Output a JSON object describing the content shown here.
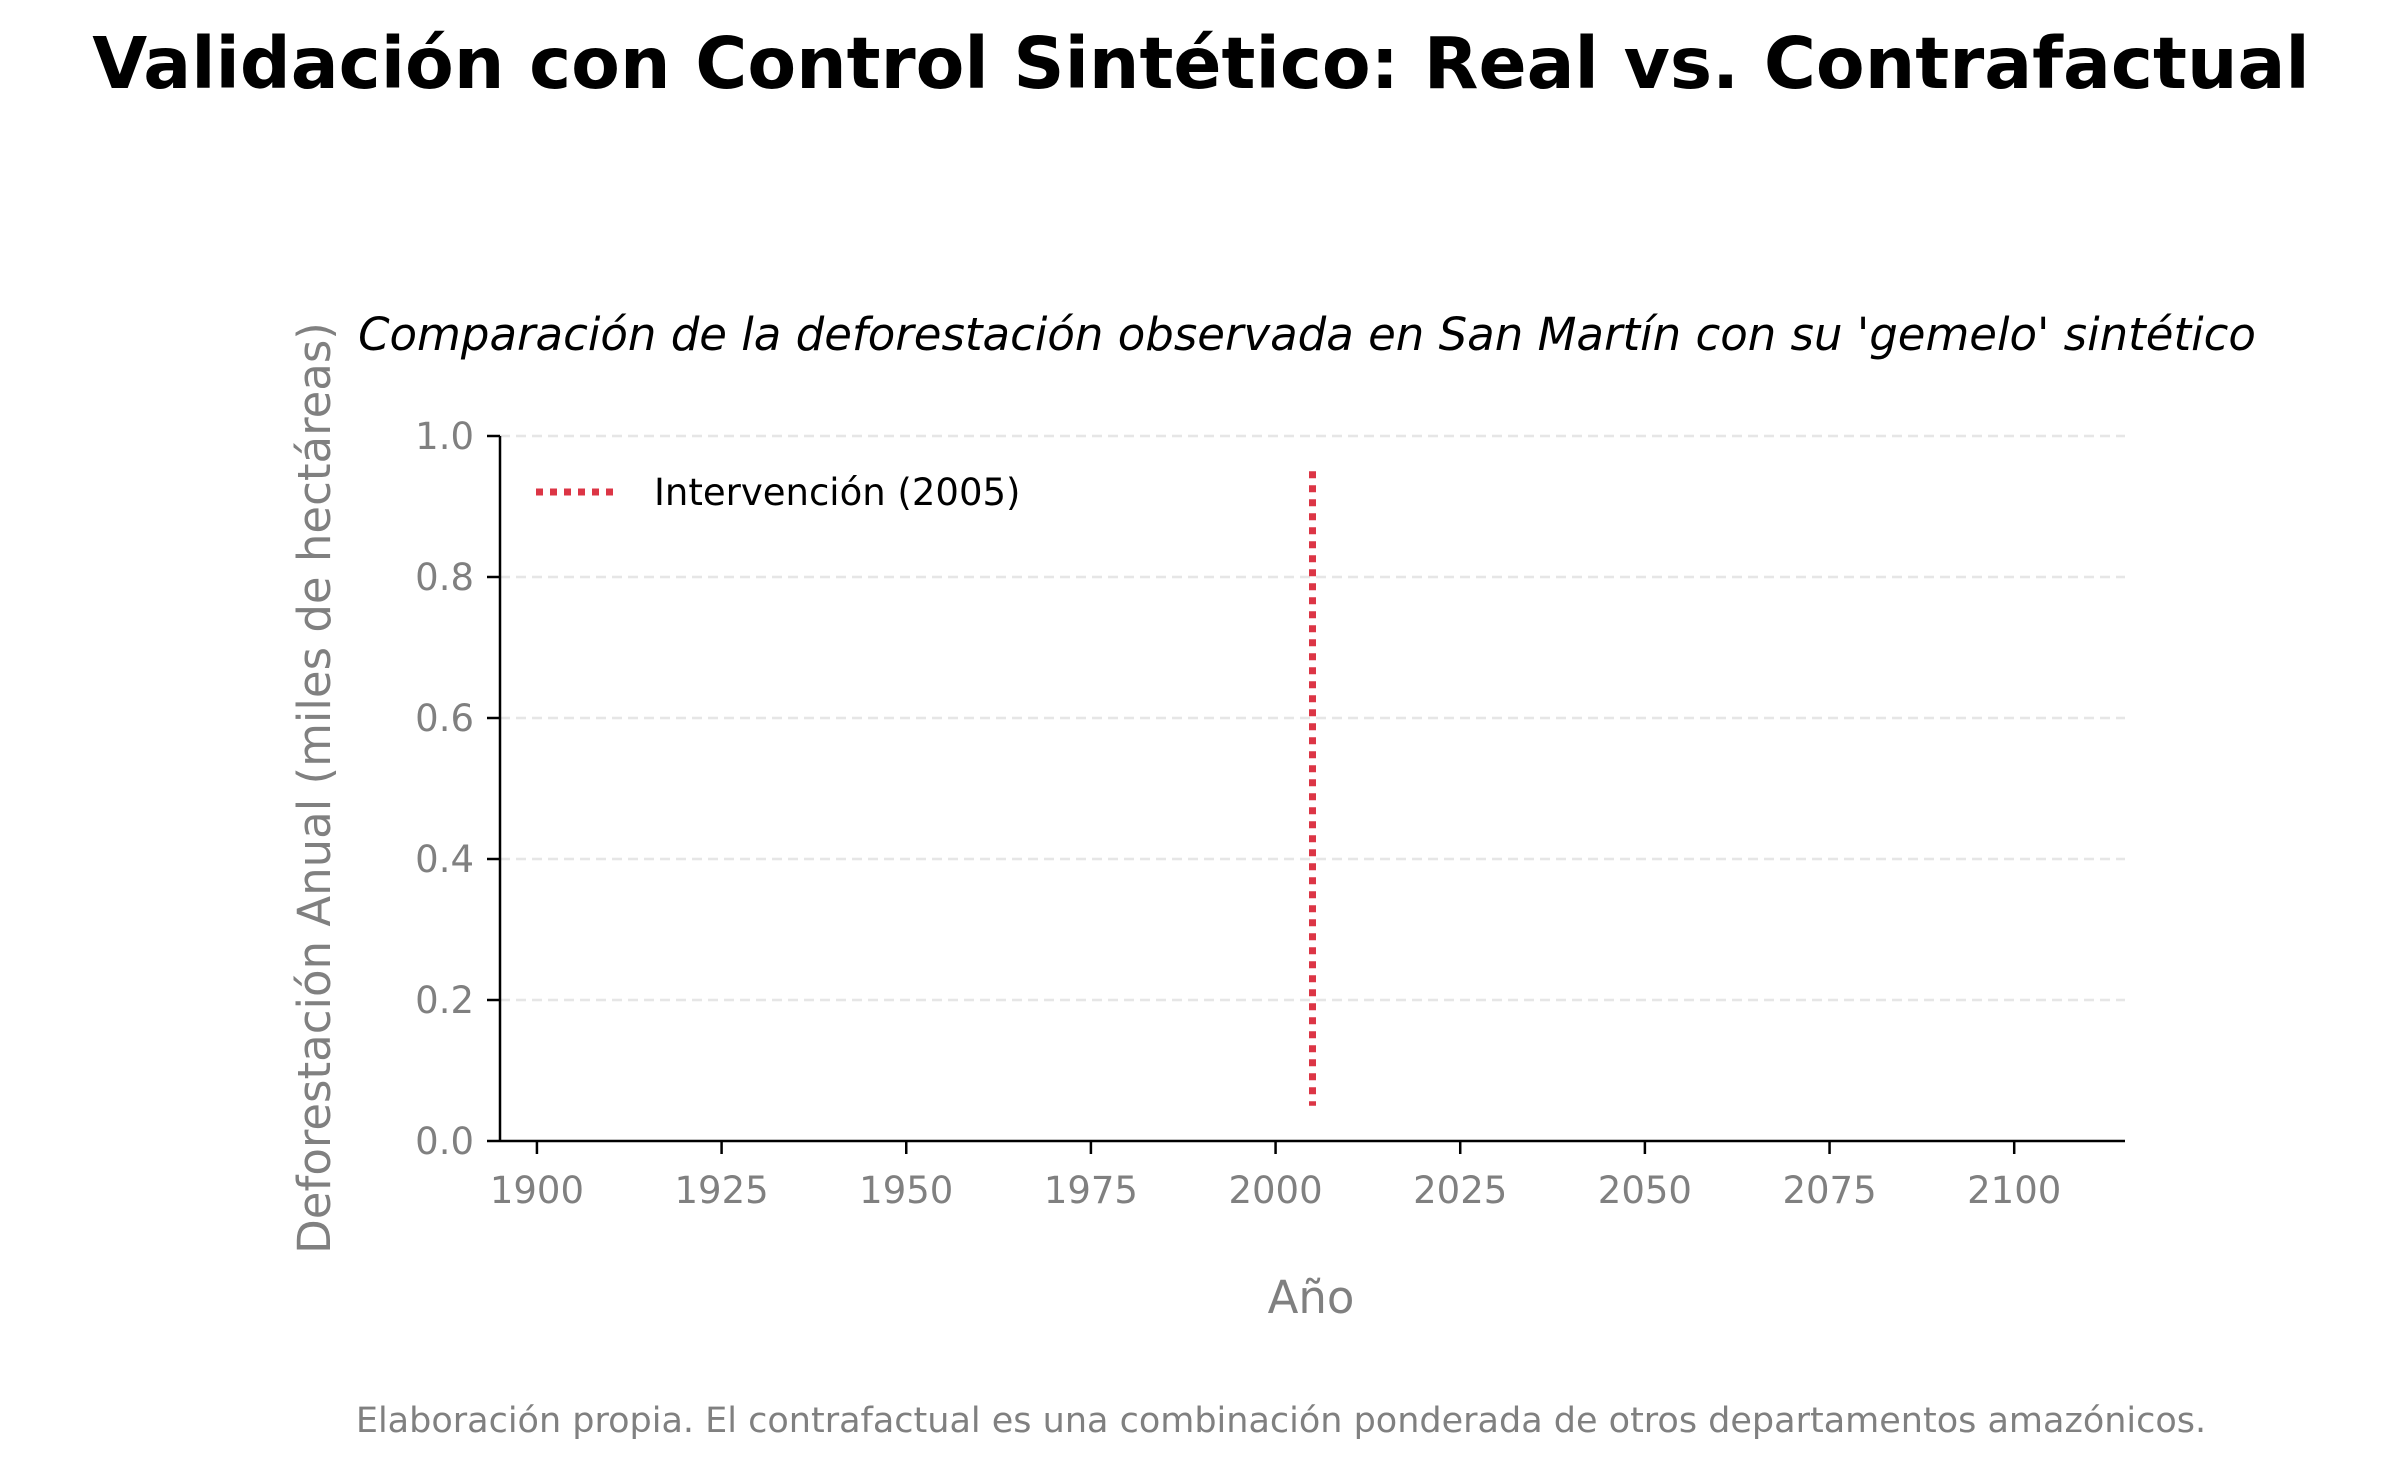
{
  "chart_data": {
    "type": "line",
    "title": "Validación con Control Sintético: Real vs. Contrafactual",
    "subtitle": "Comparación de la deforestación observada en San Martín con su 'gemelo' sintético",
    "xlabel": "Año",
    "ylabel": "Deforestación Anual (miles de hectáreas)",
    "xlim": [
      1895,
      2115
    ],
    "ylim": [
      0,
      1
    ],
    "x_ticks": [
      1900,
      1925,
      1950,
      1975,
      2000,
      2025,
      2050,
      2075,
      2100
    ],
    "y_ticks": [
      0.0,
      0.2,
      0.4,
      0.6,
      0.8,
      1.0
    ],
    "y_tick_labels": [
      "0.0",
      "0.2",
      "0.4",
      "0.6",
      "0.8",
      "1.0"
    ],
    "grid": "horizontal-dashed",
    "legend_position": "top-left",
    "series": [],
    "annotations": [
      {
        "type": "vline",
        "x": 2005,
        "y_from": 0.05,
        "y_to": 0.95,
        "label": "Intervención (2005)",
        "color": "#dc3545",
        "style": "dotted"
      }
    ],
    "note": "Elaboración propia. El contrafactual es una combinación ponderada de otros departamentos amazónicos."
  },
  "colors": {
    "intervention": "#dc3545",
    "axis": "#000000",
    "tick_text": "#808080",
    "grid": "#e6e6e6"
  }
}
